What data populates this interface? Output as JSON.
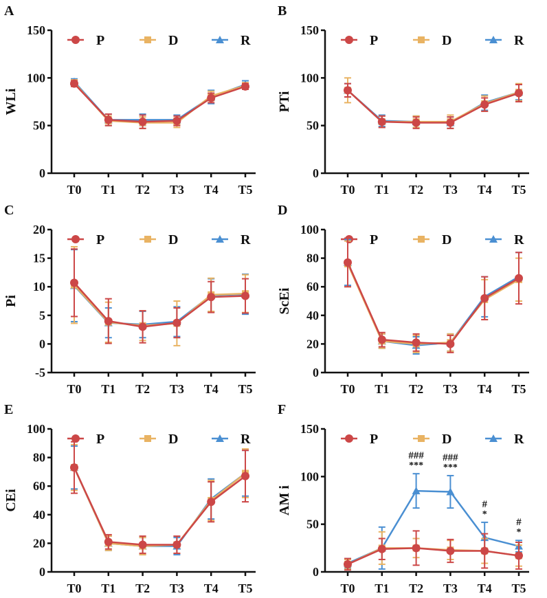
{
  "colors": {
    "P": "#cc4747",
    "D": "#e9b363",
    "R": "#4a8fd2",
    "axis": "#111111"
  },
  "chart_data": [
    {
      "panel": "A",
      "type": "line",
      "ylabel": "WLi",
      "ylim": [
        0,
        150
      ],
      "yticks": [
        0,
        50,
        100,
        150
      ],
      "categories": [
        "T0",
        "T1",
        "T2",
        "T3",
        "T4",
        "T5"
      ],
      "series": [
        {
          "name": "R",
          "values": [
            96,
            56,
            56,
            56,
            80,
            93
          ],
          "err": [
            3,
            6,
            6,
            5,
            7,
            4
          ]
        },
        {
          "name": "D",
          "values": [
            95,
            55,
            53,
            53,
            81,
            92
          ],
          "err": [
            3,
            5,
            6,
            5,
            5,
            3
          ]
        },
        {
          "name": "P",
          "values": [
            94,
            56,
            54,
            55,
            79,
            91
          ],
          "err": [
            3,
            6,
            7,
            5,
            5,
            3
          ]
        }
      ],
      "annotations": []
    },
    {
      "panel": "B",
      "type": "line",
      "ylabel": "PTi",
      "ylim": [
        0,
        150
      ],
      "yticks": [
        0,
        50,
        100,
        150
      ],
      "categories": [
        "T0",
        "T1",
        "T2",
        "T3",
        "T4",
        "T5"
      ],
      "series": [
        {
          "name": "R",
          "values": [
            87,
            55,
            54,
            53,
            74,
            85
          ],
          "err": [
            7,
            6,
            6,
            6,
            8,
            8
          ]
        },
        {
          "name": "D",
          "values": [
            87,
            54,
            54,
            54,
            73,
            85
          ],
          "err": [
            13,
            6,
            6,
            7,
            8,
            9
          ]
        },
        {
          "name": "P",
          "values": [
            87,
            54,
            53,
            53,
            72,
            84
          ],
          "err": [
            7,
            6,
            6,
            6,
            7,
            9
          ]
        }
      ],
      "annotations": []
    },
    {
      "panel": "C",
      "type": "line",
      "ylabel": "Pi",
      "ylim": [
        -5,
        20
      ],
      "yticks": [
        -5,
        0,
        5,
        10,
        15,
        20
      ],
      "categories": [
        "T0",
        "T1",
        "T2",
        "T3",
        "T4",
        "T5"
      ],
      "series": [
        {
          "name": "R",
          "values": [
            10.2,
            3.7,
            3.4,
            3.9,
            8.5,
            8.7
          ],
          "err": [
            6.3,
            2.6,
            2.3,
            2.6,
            2.9,
            3.5
          ]
        },
        {
          "name": "D",
          "values": [
            10.3,
            3.8,
            3.2,
            3.6,
            8.6,
            8.8
          ],
          "err": [
            6.7,
            3.5,
            2.6,
            3.9,
            2.9,
            3.3
          ]
        },
        {
          "name": "P",
          "values": [
            10.7,
            4.0,
            3.0,
            3.7,
            8.2,
            8.4
          ],
          "err": [
            5.9,
            3.9,
            2.8,
            2.6,
            2.7,
            3.0
          ]
        }
      ],
      "annotations": []
    },
    {
      "panel": "D",
      "type": "line",
      "ylabel": "ScEi",
      "ylim": [
        0,
        100
      ],
      "yticks": [
        0,
        20,
        40,
        60,
        80,
        100
      ],
      "categories": [
        "T0",
        "T1",
        "T2",
        "T3",
        "T4",
        "T5"
      ],
      "series": [
        {
          "name": "R",
          "values": [
            77,
            22,
            19,
            21,
            53,
            67
          ],
          "err": [
            16,
            5,
            6,
            6,
            14,
            17
          ]
        },
        {
          "name": "D",
          "values": [
            76,
            22,
            20,
            21,
            51,
            65
          ],
          "err": [
            16,
            5,
            6,
            6,
            14,
            15
          ]
        },
        {
          "name": "P",
          "values": [
            77,
            23,
            21,
            20,
            52,
            66
          ],
          "err": [
            17,
            5,
            6,
            6,
            15,
            18
          ]
        }
      ],
      "annotations": []
    },
    {
      "panel": "E",
      "type": "line",
      "ylabel": "CEi",
      "ylim": [
        0,
        100
      ],
      "yticks": [
        0,
        20,
        40,
        60,
        80,
        100
      ],
      "categories": [
        "T0",
        "T1",
        "T2",
        "T3",
        "T4",
        "T5"
      ],
      "series": [
        {
          "name": "R",
          "values": [
            73,
            20,
            18,
            18,
            51,
            69
          ],
          "err": [
            15,
            5,
            6,
            6,
            14,
            16
          ]
        },
        {
          "name": "D",
          "values": [
            73,
            20,
            18,
            19,
            50,
            69
          ],
          "err": [
            16,
            5,
            6,
            6,
            14,
            17
          ]
        },
        {
          "name": "P",
          "values": [
            73,
            21,
            19,
            19,
            49,
            67
          ],
          "err": [
            18,
            5,
            6,
            6,
            14,
            18
          ]
        }
      ],
      "annotations": []
    },
    {
      "panel": "F",
      "type": "line",
      "ylabel": "AM i",
      "ylim": [
        0,
        150
      ],
      "yticks": [
        0,
        50,
        100,
        150
      ],
      "categories": [
        "T0",
        "T1",
        "T2",
        "T3",
        "T4",
        "T5"
      ],
      "series": [
        {
          "name": "R",
          "values": [
            9,
            25,
            85,
            84,
            36,
            27
          ],
          "err": [
            5,
            22,
            18,
            17,
            16,
            6
          ]
        },
        {
          "name": "D",
          "values": [
            8,
            25,
            25,
            23,
            22,
            17
          ],
          "err": [
            5,
            17,
            10,
            10,
            13,
            11
          ]
        },
        {
          "name": "P",
          "values": [
            8,
            24,
            25,
            22,
            22,
            17
          ],
          "err": [
            6,
            11,
            18,
            12,
            18,
            14
          ]
        }
      ],
      "annotations": [
        {
          "category": "T2",
          "lines": [
            "###",
            "***"
          ]
        },
        {
          "category": "T3",
          "lines": [
            "###",
            "***"
          ]
        },
        {
          "category": "T4",
          "lines": [
            "#",
            "*"
          ]
        },
        {
          "category": "T5",
          "lines": [
            "#",
            "*"
          ]
        }
      ]
    }
  ],
  "legend": [
    {
      "name": "P",
      "marker": "circle"
    },
    {
      "name": "D",
      "marker": "square"
    },
    {
      "name": "R",
      "marker": "triangle"
    }
  ]
}
